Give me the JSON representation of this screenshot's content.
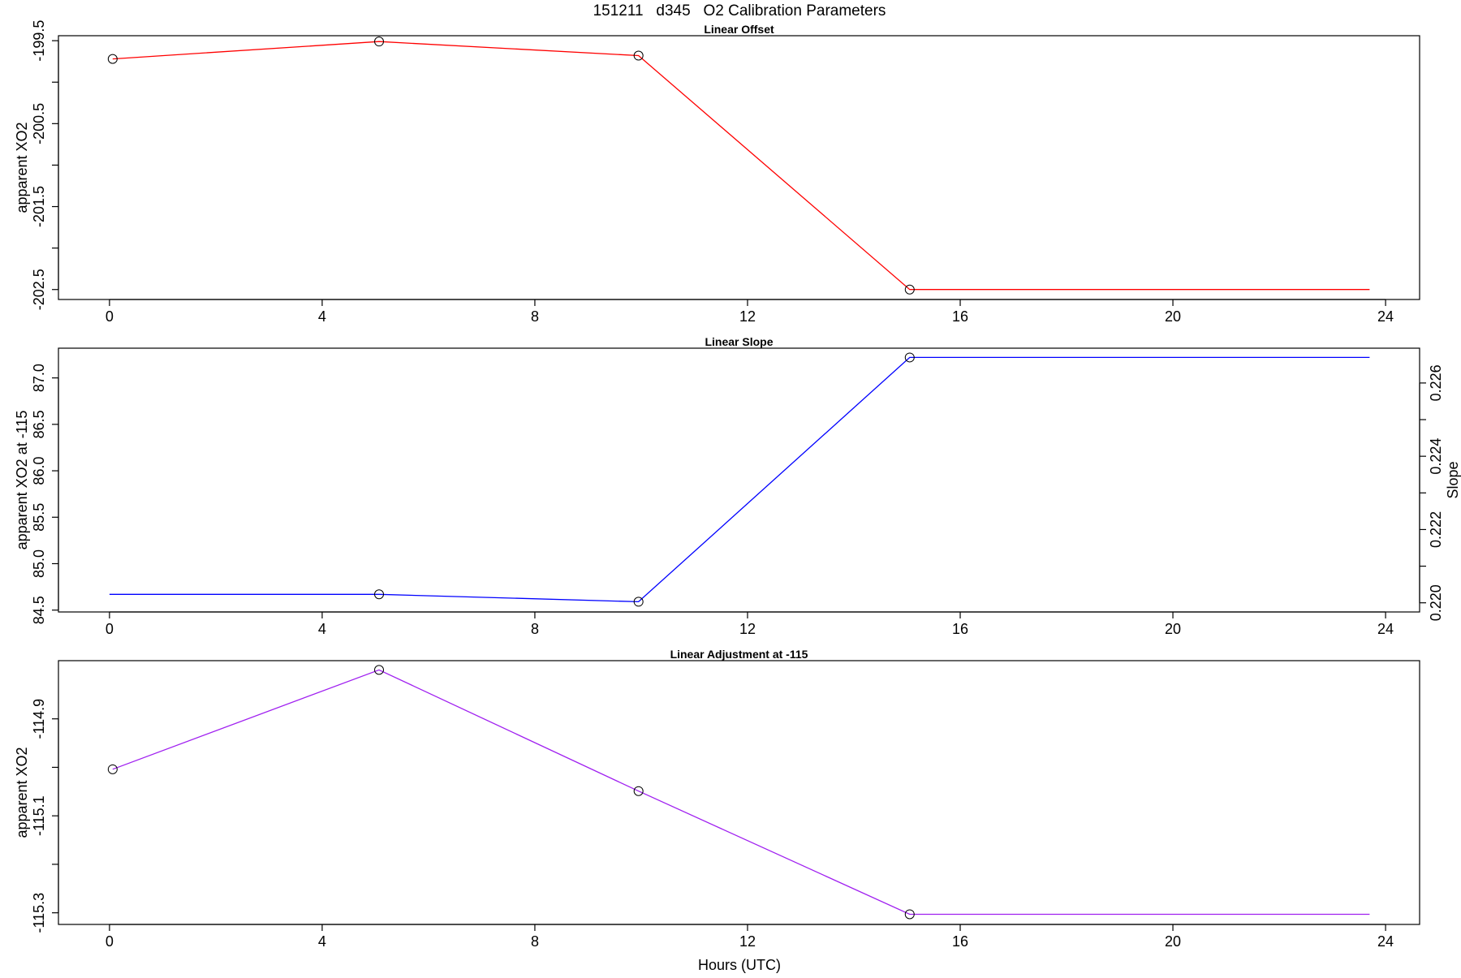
{
  "figure": {
    "title": "151211   d345   O2 Calibration Parameters",
    "xlabel": "Hours (UTC)"
  },
  "chart_data": [
    {
      "type": "line",
      "title": "Linear Offset",
      "xlabel": "",
      "ylabel": "apparent XO2",
      "xlim": [
        -0.96,
        24.64
      ],
      "ylim": [
        -202.62,
        -199.44
      ],
      "xticks": [
        0,
        4,
        8,
        12,
        16,
        20,
        24
      ],
      "xtick_labels": [
        "0",
        "4",
        "8",
        "12",
        "16",
        "20",
        "24"
      ],
      "yticks": [
        -199.5,
        -200.0,
        -200.5,
        -201.0,
        -201.5,
        -202.0,
        -202.5
      ],
      "ytick_labels": [
        "-199.5",
        "",
        "-200.5",
        "",
        "-201.5",
        "",
        "-202.5"
      ],
      "series": [
        {
          "color": "#ff0000",
          "x": [
            0.06,
            5.07,
            9.95,
            15.05,
            23.7
          ],
          "y": [
            -199.72,
            -199.51,
            -199.68,
            -202.5,
            -202.5
          ],
          "markers": [
            true,
            true,
            true,
            true,
            false
          ]
        }
      ],
      "grid": false
    },
    {
      "type": "line",
      "title": "Linear Slope",
      "xlabel": "",
      "ylabel": "apparent XO2 at -115",
      "ylabel_right": "Slope",
      "xlim": [
        -0.96,
        24.64
      ],
      "ylim": [
        84.48,
        87.32
      ],
      "ylim_right": [
        0.21975,
        0.22695
      ],
      "xticks": [
        0,
        4,
        8,
        12,
        16,
        20,
        24
      ],
      "xtick_labels": [
        "0",
        "4",
        "8",
        "12",
        "16",
        "20",
        "24"
      ],
      "yticks": [
        84.5,
        85.0,
        85.5,
        86.0,
        86.5,
        87.0
      ],
      "ytick_labels": [
        "84.5",
        "85.0",
        "85.5",
        "86.0",
        "86.5",
        "87.0"
      ],
      "yticks_right": [
        0.22,
        0.221,
        0.222,
        0.223,
        0.224,
        0.225,
        0.226
      ],
      "ytick_labels_right": [
        "0.220",
        "",
        "0.222",
        "",
        "0.224",
        "",
        "0.226"
      ],
      "series": [
        {
          "color": "#0000ff",
          "x": [
            0.0,
            5.07,
            9.95,
            15.05,
            23.7
          ],
          "y": [
            84.67,
            84.67,
            84.59,
            87.22,
            87.22
          ],
          "markers": [
            false,
            true,
            true,
            true,
            false
          ]
        }
      ],
      "grid": false
    },
    {
      "type": "line",
      "title": "Linear Adjustment at -115",
      "xlabel": "Hours (UTC)",
      "ylabel": "apparent XO2",
      "xlim": [
        -0.96,
        24.64
      ],
      "ylim": [
        -115.324,
        -114.78
      ],
      "xticks": [
        0,
        4,
        8,
        12,
        16,
        20,
        24
      ],
      "xtick_labels": [
        "0",
        "4",
        "8",
        "12",
        "16",
        "20",
        "24"
      ],
      "yticks": [
        -114.9,
        -115.0,
        -115.1,
        -115.2,
        -115.3
      ],
      "ytick_labels": [
        "-114.9",
        "",
        "-115.1",
        "",
        "-115.3"
      ],
      "series": [
        {
          "color": "#a020f0",
          "x": [
            0.06,
            5.07,
            9.95,
            15.05,
            23.7
          ],
          "y": [
            -115.004,
            -114.799,
            -115.049,
            -115.303,
            -115.303
          ],
          "markers": [
            true,
            true,
            true,
            true,
            false
          ]
        }
      ],
      "grid": false
    }
  ]
}
